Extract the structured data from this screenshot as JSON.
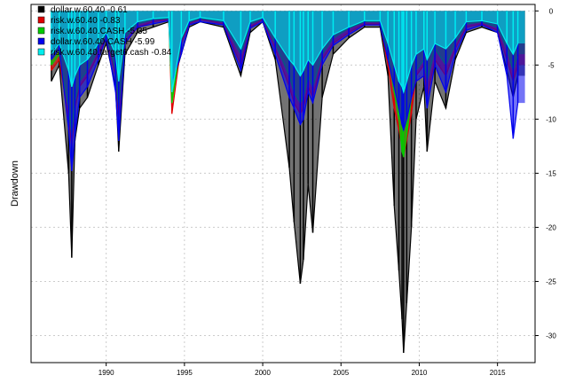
{
  "chart_data": {
    "type": "area",
    "title": "",
    "xlabel": "",
    "ylabel": "Drawdown",
    "xlim": [
      1985.2,
      2017.4
    ],
    "ylim": [
      -32.5,
      0.6
    ],
    "x_ticks": [
      1990,
      1995,
      2000,
      2005,
      2010,
      2015
    ],
    "y_ticks": [
      0,
      -5,
      -10,
      -15,
      -20,
      -25,
      -30
    ],
    "x_tick_labels": [
      "1990",
      "1995",
      "2000",
      "2005",
      "2010",
      "2015"
    ],
    "y_tick_labels": [
      "0",
      "-5",
      "-10",
      "-15",
      "-20",
      "-25",
      "-30"
    ],
    "grid": true,
    "legend_position": "top-left",
    "y_axis_side": "right",
    "series": [
      {
        "name": "dollar.w.60.40 -0.61",
        "color": "#000000",
        "x": [
          1986.5,
          1987.0,
          1987.6,
          1987.8,
          1988.0,
          1988.3,
          1988.8,
          1989.5,
          1990.0,
          1990.6,
          1990.8,
          1991.2,
          1992.0,
          1993.0,
          1994.0,
          1994.2,
          1994.8,
          1995.3,
          1996.0,
          1997.5,
          1998.6,
          1999.2,
          2000.0,
          2000.8,
          2001.7,
          2002.0,
          2002.4,
          2002.6,
          2002.9,
          2003.2,
          2003.8,
          2004.5,
          2005.5,
          2006.5,
          2007.5,
          2008.0,
          2008.4,
          2008.7,
          2008.9,
          2009.0,
          2009.2,
          2009.5,
          2009.8,
          2010.3,
          2010.5,
          2011.0,
          2011.7,
          2012.3,
          2013.0,
          2014.0,
          2015.0,
          2015.6,
          2016.0,
          2016.3
        ],
        "y": [
          -6.5,
          -5.0,
          -15.0,
          -22.8,
          -12.0,
          -9.0,
          -8.0,
          -5.0,
          -3.0,
          -7.0,
          -13.0,
          -4.0,
          -2.0,
          -1.5,
          -1.0,
          -7.0,
          -4.0,
          -1.5,
          -1.0,
          -1.5,
          -6.0,
          -2.0,
          -1.0,
          -4.5,
          -14.5,
          -19.5,
          -25.2,
          -23.0,
          -16.0,
          -20.5,
          -8.0,
          -4.0,
          -2.5,
          -1.5,
          -1.5,
          -6.0,
          -18.0,
          -24.0,
          -28.5,
          -31.6,
          -27.0,
          -20.0,
          -10.0,
          -7.0,
          -13.0,
          -6.5,
          -9.0,
          -4.5,
          -2.0,
          -1.5,
          -2.0,
          -5.5,
          -8.0,
          -6.0
        ]
      },
      {
        "name": "risk.w.60.40 -0.83",
        "color": "#df0000",
        "x": [
          1986.5,
          1987.0,
          1987.6,
          1987.8,
          1988.0,
          1988.3,
          1988.8,
          1989.5,
          1990.0,
          1990.6,
          1990.8,
          1991.2,
          1992.0,
          1993.0,
          1994.0,
          1994.2,
          1994.8,
          1995.3,
          1996.0,
          1997.5,
          1998.6,
          1999.2,
          2000.0,
          2000.8,
          2001.7,
          2002.0,
          2002.4,
          2002.6,
          2002.9,
          2003.2,
          2003.8,
          2004.5,
          2005.5,
          2006.5,
          2007.5,
          2008.0,
          2008.4,
          2008.7,
          2008.9,
          2009.0,
          2009.2,
          2009.5,
          2009.8,
          2010.3,
          2010.5,
          2011.0,
          2011.7,
          2012.3,
          2013.0,
          2014.0,
          2015.0,
          2015.6,
          2016.0,
          2016.3
        ],
        "y": [
          -5.5,
          -4.5,
          -10.0,
          -12.5,
          -9.0,
          -7.0,
          -6.0,
          -4.0,
          -2.5,
          -6.0,
          -10.0,
          -3.0,
          -1.5,
          -1.0,
          -0.8,
          -9.5,
          -3.0,
          -1.2,
          -0.8,
          -1.2,
          -5.0,
          -1.5,
          -0.8,
          -3.5,
          -7.0,
          -8.5,
          -9.5,
          -9.0,
          -7.0,
          -8.0,
          -4.5,
          -3.0,
          -2.0,
          -1.2,
          -1.2,
          -5.0,
          -9.0,
          -11.0,
          -12.5,
          -13.5,
          -12.0,
          -9.5,
          -6.0,
          -5.0,
          -8.0,
          -4.5,
          -6.0,
          -3.5,
          -1.5,
          -1.2,
          -1.8,
          -4.5,
          -6.5,
          -5.0
        ]
      },
      {
        "name": "risk.w.60.40.CASH -5.35",
        "color": "#00cd00",
        "x": [
          1986.5,
          1987.0,
          1987.6,
          1987.8,
          1988.0,
          1988.3,
          1988.8,
          1989.5,
          1990.0,
          1990.6,
          1990.8,
          1991.2,
          1992.0,
          1993.0,
          1994.0,
          1994.2,
          1994.8,
          1995.3,
          1996.0,
          1997.5,
          1998.6,
          1999.2,
          2000.0,
          2000.8,
          2001.7,
          2002.0,
          2002.4,
          2002.6,
          2002.9,
          2003.2,
          2003.8,
          2004.5,
          2005.5,
          2006.5,
          2007.5,
          2008.0,
          2008.4,
          2008.7,
          2008.9,
          2009.0,
          2009.2,
          2009.5,
          2009.8,
          2010.3,
          2010.5,
          2011.0,
          2011.7,
          2012.3,
          2013.0,
          2014.0,
          2015.0,
          2015.6,
          2016.0,
          2016.3
        ],
        "y": [
          -5.0,
          -4.0,
          -9.0,
          -11.5,
          -8.5,
          -6.5,
          -5.5,
          -3.5,
          -2.2,
          -5.5,
          -9.0,
          -2.5,
          -1.2,
          -0.8,
          -0.7,
          -8.5,
          -2.7,
          -1.0,
          -0.7,
          -1.0,
          -4.0,
          -1.2,
          -0.7,
          -3.0,
          -6.0,
          -7.5,
          -8.5,
          -8.0,
          -6.0,
          -7.0,
          -4.0,
          -2.5,
          -1.6,
          -1.0,
          -1.0,
          -4.0,
          -7.5,
          -10.0,
          -13.0,
          -13.5,
          -11.5,
          -8.0,
          -5.5,
          -4.5,
          -6.5,
          -3.5,
          -5.0,
          -3.0,
          -1.2,
          -1.0,
          -1.5,
          -3.5,
          -5.5,
          -4.0
        ]
      },
      {
        "name": "dollar.w.60.40.CASH -5.99",
        "color": "#0000ee",
        "x": [
          1986.5,
          1987.0,
          1987.6,
          1987.8,
          1988.0,
          1988.3,
          1988.8,
          1989.5,
          1990.0,
          1990.6,
          1990.8,
          1991.2,
          1992.0,
          1993.0,
          1994.0,
          1994.2,
          1994.8,
          1995.3,
          1996.0,
          1997.5,
          1998.6,
          1999.2,
          2000.0,
          2000.8,
          2001.7,
          2002.0,
          2002.4,
          2002.6,
          2002.9,
          2003.2,
          2003.8,
          2004.5,
          2005.5,
          2006.5,
          2007.5,
          2008.0,
          2008.4,
          2008.7,
          2008.9,
          2009.0,
          2009.2,
          2009.5,
          2009.8,
          2010.3,
          2010.5,
          2011.0,
          2011.7,
          2012.3,
          2013.0,
          2014.0,
          2015.0,
          2015.6,
          2016.0,
          2016.3
        ],
        "y": [
          -4.5,
          -3.5,
          -11.0,
          -14.8,
          -11.5,
          -8.0,
          -7.0,
          -4.5,
          -2.5,
          -7.5,
          -12.0,
          -3.0,
          -1.5,
          -1.2,
          -0.9,
          -6.5,
          -4.0,
          -1.3,
          -1.0,
          -1.3,
          -5.5,
          -1.6,
          -1.0,
          -4.0,
          -8.0,
          -9.0,
          -10.5,
          -10.0,
          -7.5,
          -8.5,
          -5.0,
          -3.2,
          -2.2,
          -1.3,
          -1.3,
          -4.5,
          -7.0,
          -9.0,
          -10.5,
          -11.0,
          -10.0,
          -8.0,
          -6.5,
          -6.0,
          -9.0,
          -5.0,
          -7.5,
          -4.0,
          -1.8,
          -1.3,
          -2.0,
          -6.0,
          -11.8,
          -8.5
        ]
      },
      {
        "name": "risk.w.60.40.target6.cash -0.84",
        "color": "#00eeee",
        "x": [
          1986.5,
          1987.0,
          1987.6,
          1987.8,
          1988.0,
          1988.3,
          1988.8,
          1989.5,
          1990.0,
          1990.6,
          1990.8,
          1991.2,
          1992.0,
          1993.0,
          1994.0,
          1994.2,
          1994.8,
          1995.3,
          1996.0,
          1997.5,
          1998.6,
          1999.2,
          2000.0,
          2000.8,
          2001.7,
          2002.0,
          2002.4,
          2002.6,
          2002.9,
          2003.2,
          2003.8,
          2004.5,
          2005.5,
          2006.5,
          2007.5,
          2008.0,
          2008.4,
          2008.7,
          2008.9,
          2009.0,
          2009.2,
          2009.5,
          2009.8,
          2010.3,
          2010.5,
          2011.0,
          2011.7,
          2012.3,
          2013.0,
          2014.0,
          2015.0,
          2015.6,
          2016.0,
          2016.3
        ],
        "y": [
          -4.0,
          -3.0,
          -5.5,
          -7.0,
          -6.0,
          -5.0,
          -4.5,
          -3.0,
          -2.0,
          -4.0,
          -6.5,
          -2.0,
          -1.0,
          -0.7,
          -0.6,
          -7.5,
          -2.5,
          -0.9,
          -0.6,
          -0.9,
          -3.5,
          -1.0,
          -0.6,
          -2.5,
          -4.5,
          -5.0,
          -6.0,
          -5.5,
          -4.5,
          -5.0,
          -3.5,
          -2.2,
          -1.5,
          -0.9,
          -0.9,
          -3.0,
          -5.0,
          -6.5,
          -7.0,
          -7.5,
          -6.5,
          -5.0,
          -4.0,
          -3.5,
          -4.5,
          -3.0,
          -3.5,
          -2.5,
          -1.0,
          -0.9,
          -1.2,
          -3.0,
          -4.0,
          -3.0
        ]
      }
    ]
  }
}
